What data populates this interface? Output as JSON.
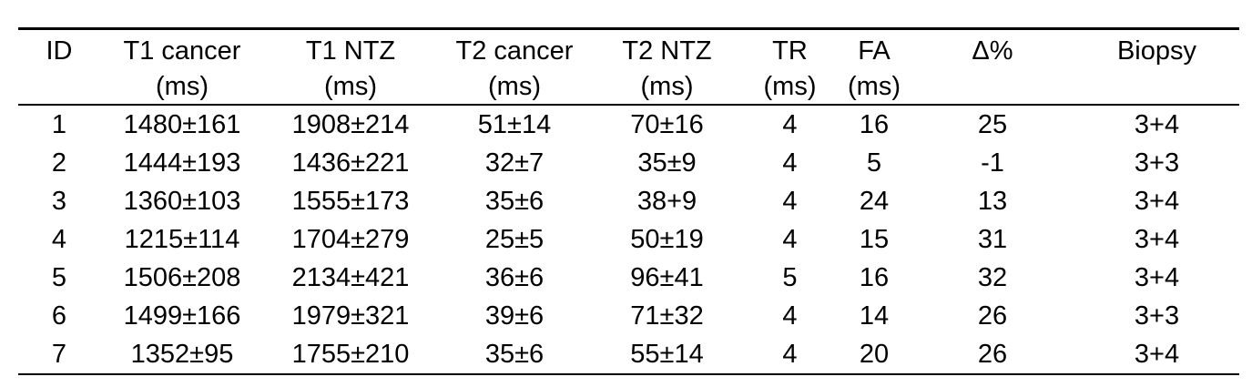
{
  "table": {
    "columns": [
      {
        "id": "id",
        "label": "ID",
        "unit": ""
      },
      {
        "id": "t1-cancer",
        "label": "T1 cancer",
        "unit": "(ms)"
      },
      {
        "id": "t1-ntz",
        "label": "T1 NTZ",
        "unit": "(ms)"
      },
      {
        "id": "t2-cancer",
        "label": "T2 cancer",
        "unit": "(ms)"
      },
      {
        "id": "t2-ntz",
        "label": "T2 NTZ",
        "unit": "(ms)"
      },
      {
        "id": "tr",
        "label": "TR",
        "unit": "(ms)"
      },
      {
        "id": "fa",
        "label": "FA",
        "unit": "(ms)"
      },
      {
        "id": "delta-pct",
        "label": "Δ%",
        "unit": ""
      },
      {
        "id": "biopsy",
        "label": "Biopsy",
        "unit": ""
      }
    ],
    "rows": [
      [
        "1",
        "1480±161",
        "1908±214",
        "51±14",
        "70±16",
        "4",
        "16",
        "25",
        "3+4"
      ],
      [
        "2",
        "1444±193",
        "1436±221",
        "32±7",
        "35±9",
        "4",
        "5",
        "-1",
        "3+3"
      ],
      [
        "3",
        "1360±103",
        "1555±173",
        "35±6",
        "38+9",
        "4",
        "24",
        "13",
        "3+4"
      ],
      [
        "4",
        "1215±114",
        "1704±279",
        "25±5",
        "50±19",
        "4",
        "15",
        "31",
        "3+4"
      ],
      [
        "5",
        "1506±208",
        "2134±421",
        "36±6",
        "96±41",
        "5",
        "16",
        "32",
        "3+4"
      ],
      [
        "6",
        "1499±166",
        "1979±321",
        "39±6",
        "71±32",
        "4",
        "14",
        "26",
        "3+3"
      ],
      [
        "7",
        "1352±95",
        "1755±210",
        "35±6",
        "55±14",
        "4",
        "20",
        "26",
        "3+4"
      ]
    ]
  },
  "colors": {
    "background": "#ffffff",
    "text": "#000000",
    "rule": "#000000"
  }
}
